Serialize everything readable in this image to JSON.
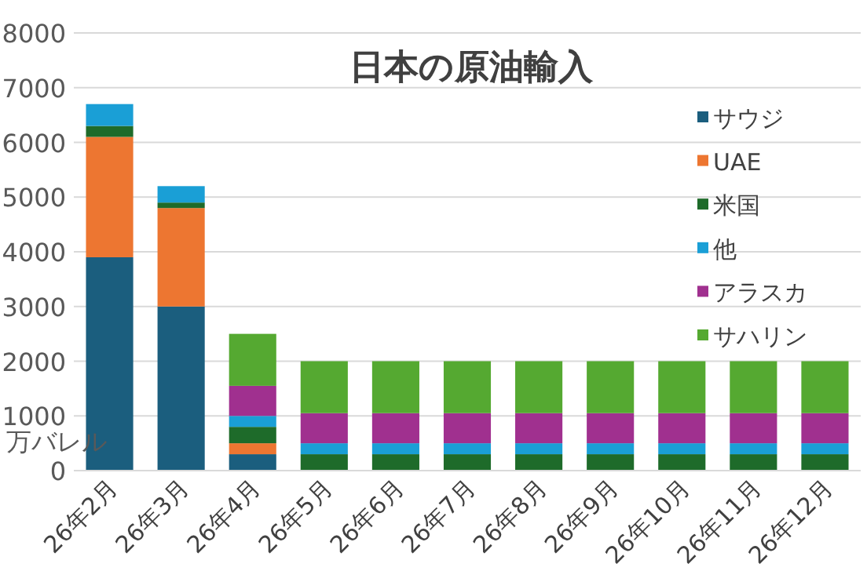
{
  "chart_data": {
    "type": "bar",
    "stacked": true,
    "title": "日本の原油輸入",
    "ylabel": "万バレル",
    "categories": [
      "26年2月",
      "26年3月",
      "26年4月",
      "26年5月",
      "26年6月",
      "26年7月",
      "26年8月",
      "26年9月",
      "26年10月",
      "26年11月",
      "26年12月"
    ],
    "series": [
      {
        "name": "サウジ",
        "color": "#1b5e7e",
        "values": [
          3900,
          3000,
          300,
          0,
          0,
          0,
          0,
          0,
          0,
          0,
          0
        ]
      },
      {
        "name": "UAE",
        "color": "#ed7631",
        "values": [
          2200,
          1800,
          200,
          0,
          0,
          0,
          0,
          0,
          0,
          0,
          0
        ]
      },
      {
        "name": "米国",
        "color": "#1e6b2a",
        "values": [
          200,
          100,
          300,
          300,
          300,
          300,
          300,
          300,
          300,
          300,
          300
        ]
      },
      {
        "name": "他",
        "color": "#1a9fd6",
        "values": [
          400,
          300,
          200,
          200,
          200,
          200,
          200,
          200,
          200,
          200,
          200
        ]
      },
      {
        "name": "アラスカ",
        "color": "#a0308f",
        "values": [
          0,
          0,
          550,
          550,
          550,
          550,
          550,
          550,
          550,
          550,
          550
        ]
      },
      {
        "name": "サハリン",
        "color": "#55a931",
        "values": [
          0,
          0,
          950,
          950,
          950,
          950,
          950,
          950,
          950,
          950,
          950
        ]
      }
    ],
    "ylim": [
      0,
      8000
    ],
    "yticks": [
      0,
      1000,
      2000,
      3000,
      4000,
      5000,
      6000,
      7000,
      8000
    ],
    "grid": "y",
    "legend": "right"
  }
}
